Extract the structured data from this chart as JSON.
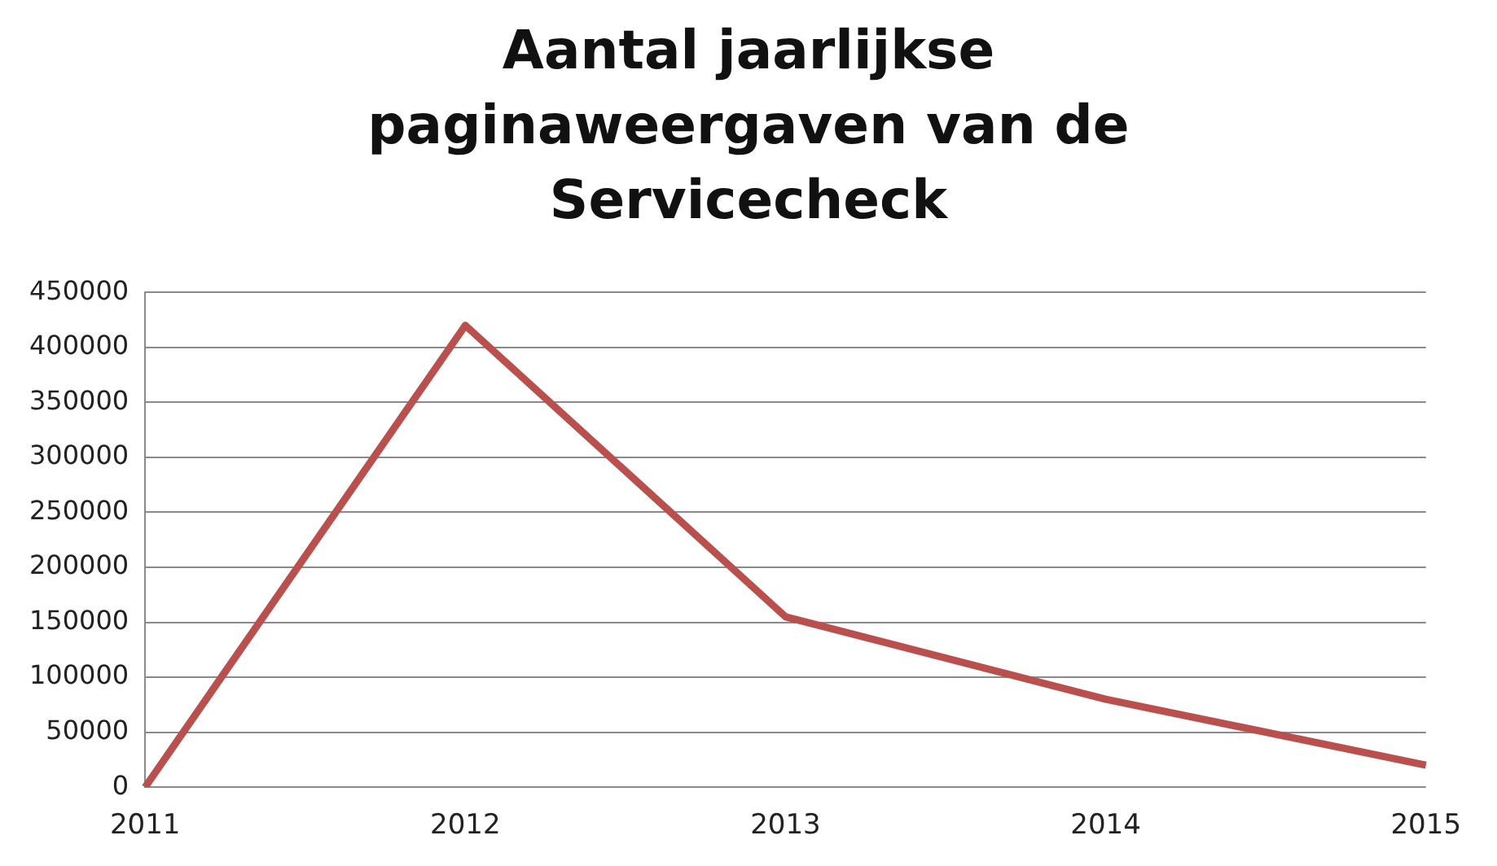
{
  "chart_data": {
    "type": "line",
    "title": "Aantal jaarlijkse paginaweergaven van de Servicecheck",
    "categories": [
      "2011",
      "2012",
      "2013",
      "2014",
      "2015"
    ],
    "series": [
      {
        "color": "#b9504d",
        "values": [
          0,
          420000,
          155000,
          80000,
          20000
        ]
      }
    ],
    "ylim": [
      0,
      450000
    ],
    "yticks": [
      0,
      50000,
      100000,
      150000,
      200000,
      250000,
      300000,
      350000,
      400000,
      450000
    ],
    "grid": "y",
    "legend": false,
    "marker": "none"
  }
}
